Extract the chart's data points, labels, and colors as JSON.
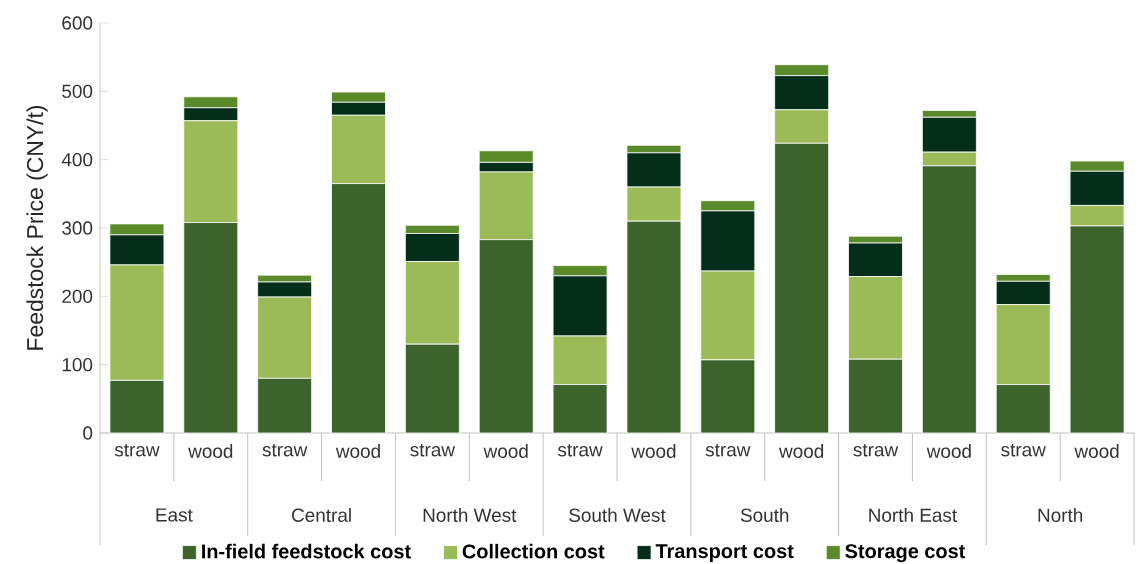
{
  "chart_data": {
    "type": "bar",
    "stacked": true,
    "ylabel": "Feedstock Price (CNY/t)",
    "categories": [
      "straw",
      "wood",
      "straw",
      "wood",
      "straw",
      "wood",
      "straw",
      "wood",
      "straw",
      "wood",
      "straw",
      "wood",
      "straw",
      "wood"
    ],
    "annotations": [
      "East",
      "Central",
      "North West",
      "South West",
      "South",
      "North East",
      "North"
    ],
    "series": [
      {
        "name": "In-field feedstock cost",
        "color": "#3b632b",
        "values": [
          77,
          308,
          80,
          365,
          130,
          283,
          71,
          310,
          107,
          424,
          108,
          391,
          71,
          303
        ]
      },
      {
        "name": "Collection cost",
        "color": "#9bbb59",
        "values": [
          169,
          149,
          119,
          100,
          121,
          99,
          71,
          50,
          130,
          49,
          121,
          20,
          117,
          30
        ]
      },
      {
        "name": "Transport cost",
        "color": "#042e19",
        "values": [
          44,
          19,
          22,
          19,
          41,
          14,
          88,
          50,
          88,
          50,
          49,
          51,
          34,
          50
        ]
      },
      {
        "name": "Storage cost",
        "color": "#5a8a2a",
        "values": [
          16,
          16,
          10,
          15,
          12,
          17,
          15,
          11,
          15,
          16,
          10,
          10,
          10,
          15
        ]
      }
    ],
    "ylim": [
      0,
      600
    ],
    "yticks": [
      0,
      100,
      200,
      300,
      400,
      500,
      600
    ],
    "grid": false,
    "legend": "bottom"
  }
}
